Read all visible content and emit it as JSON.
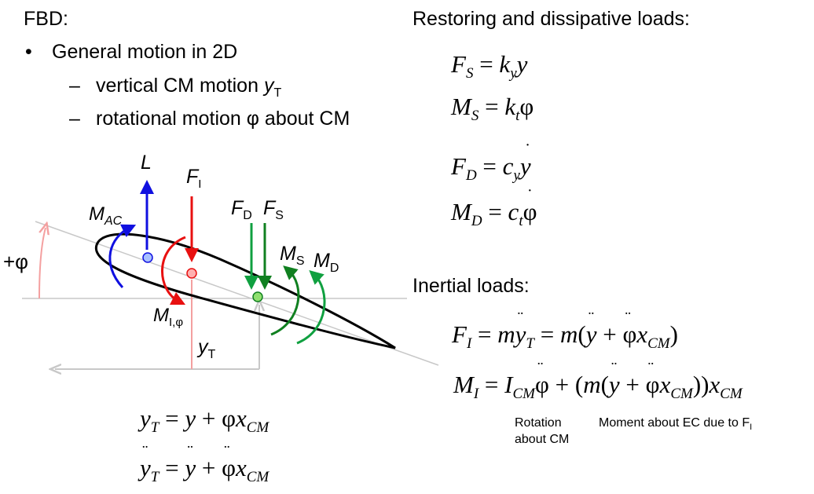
{
  "left": {
    "heading": "FBD:",
    "bullet": "•",
    "bullet_text": "General motion in 2D",
    "dash": "–",
    "sub_items": [
      {
        "text": "vertical CM motion ",
        "var": "y",
        "sub": "T"
      },
      {
        "text": "rotational motion φ about CM"
      }
    ]
  },
  "diagram_labels": {
    "L": "L",
    "FI": {
      "base": "F",
      "sub": "I"
    },
    "MAC": {
      "base": "M",
      "sub": "AC"
    },
    "FD": {
      "base": "F",
      "sub": "D"
    },
    "FS": {
      "base": "F",
      "sub": "S"
    },
    "MS": {
      "base": "M",
      "sub": "S"
    },
    "MD": {
      "base": "M",
      "sub": "D"
    },
    "phi": "+φ",
    "MIphi": {
      "base": "M",
      "sub": "I,φ"
    },
    "yT": {
      "base": "y",
      "sub": "T"
    }
  },
  "colors": {
    "lift": "#1010e0",
    "inertial": "#e81010",
    "restoring": "#10a040",
    "dissipative": "#108020",
    "phi_arrow": "#f4a0a0",
    "reference": "#c8c8c8",
    "airfoil": "#000000"
  },
  "left_equations": {
    "eq1": {
      "lhs": "y",
      "lhs_sub": "T",
      "rhs1": "y",
      "op": "+",
      "phi": "φ",
      "x": "x",
      "x_sub": "CM"
    },
    "eq2": {
      "lhs": "y",
      "lhs_sub": "T",
      "rhs1": "y",
      "op": "+",
      "phi": "φ",
      "x": "x",
      "x_sub": "CM"
    }
  },
  "right": {
    "heading1": "Restoring and dissipative loads:",
    "eq_FS": {
      "lhs": "F",
      "lhs_sub": "S",
      "k": "k",
      "k_sub": "y",
      "var": "y"
    },
    "eq_MS": {
      "lhs": "M",
      "lhs_sub": "S",
      "k": "k",
      "k_sub": "t",
      "var": "φ"
    },
    "eq_FD": {
      "lhs": "F",
      "lhs_sub": "D",
      "k": "c",
      "k_sub": "y",
      "var": "y"
    },
    "eq_MD": {
      "lhs": "M",
      "lhs_sub": "D",
      "k": "c",
      "k_sub": "t",
      "var": "φ"
    },
    "heading2": "Inertial loads:",
    "eq_FI": {
      "lhs": "F",
      "lhs_sub": "I",
      "m": "m",
      "y": "y",
      "y_sub": "T",
      "phi": "φ",
      "x": "x",
      "x_sub": "CM"
    },
    "eq_MI": {
      "lhs": "M",
      "lhs_sub": "I",
      "I": "I",
      "I_sub": "CM",
      "phi": "φ",
      "m": "m",
      "y": "y",
      "x": "x",
      "x_sub": "CM"
    },
    "note_rotation": [
      "Rotation",
      "about CM"
    ],
    "note_moment": "Moment about EC due to F",
    "note_moment_sub": "I"
  }
}
